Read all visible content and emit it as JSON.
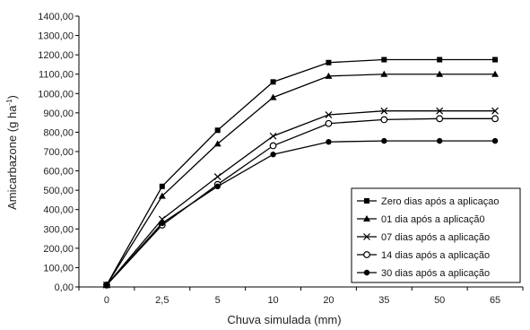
{
  "chart_data": {
    "type": "line",
    "xlabel": "Chuva simulada (mm)",
    "ylabel": "Amicarbazone (g ha",
    "ylabel_sup": "-1",
    "ylabel_close": ")",
    "categories": [
      "0",
      "2,5",
      "5",
      "10",
      "20",
      "35",
      "50",
      "65"
    ],
    "ylim": [
      0,
      1400
    ],
    "yticks": [
      "0,00",
      "100,00",
      "200,00",
      "300,00",
      "400,00",
      "500,00",
      "600,00",
      "700,00",
      "800,00",
      "900,00",
      "1000,00",
      "1100,00",
      "1200,00",
      "1300,00",
      "1400,00"
    ],
    "grid": false,
    "legend_position": "bottom-right",
    "series": [
      {
        "name": "Zero dias após a aplicaçao",
        "marker": "square",
        "values": [
          10,
          520,
          810,
          1060,
          1160,
          1175,
          1175,
          1175
        ]
      },
      {
        "name": "01 dia após a aplicaçã0",
        "marker": "triangle",
        "values": [
          10,
          470,
          740,
          980,
          1090,
          1100,
          1100,
          1100
        ]
      },
      {
        "name": "07 dias após a aplicação",
        "marker": "x",
        "values": [
          10,
          350,
          570,
          780,
          890,
          910,
          910,
          910
        ]
      },
      {
        "name": "14 dias após a aplicação",
        "marker": "circle-open",
        "values": [
          10,
          320,
          530,
          730,
          845,
          865,
          870,
          870
        ]
      },
      {
        "name": "30 dias após a aplicação",
        "marker": "circle-filled",
        "values": [
          10,
          330,
          520,
          685,
          750,
          755,
          755,
          755
        ]
      }
    ]
  }
}
